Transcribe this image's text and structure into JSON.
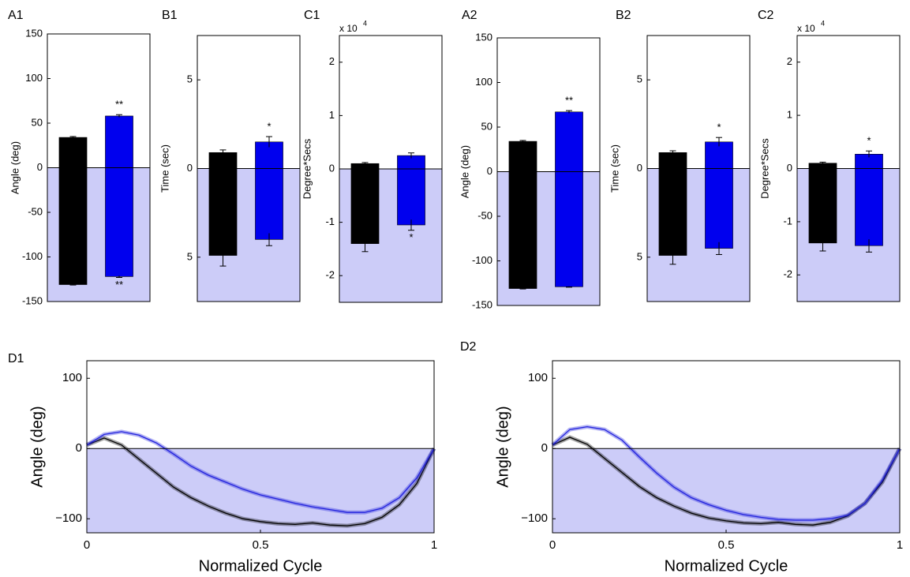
{
  "chart_data": [
    {
      "type": "bar",
      "panel": "A1",
      "ylabel": "Angle (deg)",
      "ylim": [
        -150,
        150
      ],
      "yticks": [
        -150,
        -100,
        -50,
        0,
        50,
        100,
        150
      ],
      "shade_color": "#ccccf8",
      "series": [
        {
          "color": "#000000",
          "values": [
            34,
            -131
          ],
          "errors": [
            1,
            0.5
          ],
          "significance": [
            null,
            null
          ]
        },
        {
          "color": "#0000ee",
          "values": [
            58,
            -122
          ],
          "errors": [
            1.5,
            1
          ],
          "significance": [
            "**",
            "**"
          ]
        }
      ]
    },
    {
      "type": "bar",
      "panel": "B1",
      "ylabel": "Time (sec)",
      "ylim": [
        -7.5,
        7.5
      ],
      "yticks": [
        {
          "value": -5,
          "label": "5"
        },
        0,
        5
      ],
      "shade_color": "#ccccf8",
      "series": [
        {
          "color": "#000000",
          "values": [
            0.9,
            -4.9
          ],
          "errors": [
            0.15,
            0.6
          ],
          "significance": [
            null,
            null
          ]
        },
        {
          "color": "#0000ee",
          "values": [
            1.5,
            -4.0
          ],
          "errors": [
            0.3,
            0.35
          ],
          "significance": [
            "*",
            null
          ]
        }
      ]
    },
    {
      "type": "bar",
      "panel": "C1",
      "ylabel": "Degree*Secs",
      "multiplier_base": "x 10",
      "multiplier_exponent": "4",
      "ylim": [
        -2.5,
        2.5
      ],
      "yticks": [
        -2,
        -1,
        0,
        1,
        2
      ],
      "shade_color": "#ccccf8",
      "series": [
        {
          "color": "#000000",
          "values": [
            0.1,
            -1.4
          ],
          "errors": [
            0.02,
            0.15
          ],
          "significance": [
            null,
            null
          ]
        },
        {
          "color": "#0000ee",
          "values": [
            0.25,
            -1.05
          ],
          "errors": [
            0.05,
            0.1
          ],
          "significance": [
            null,
            "*"
          ]
        }
      ]
    },
    {
      "type": "bar",
      "panel": "A2",
      "ylabel": "Angle (deg)",
      "ylim": [
        -150,
        150
      ],
      "yticks": [
        -150,
        -100,
        -50,
        0,
        50,
        100,
        150
      ],
      "shade_color": "#ccccf8",
      "series": [
        {
          "color": "#000000",
          "values": [
            34,
            -131
          ],
          "errors": [
            1,
            0.5
          ],
          "significance": [
            null,
            null
          ]
        },
        {
          "color": "#0000ee",
          "values": [
            67,
            -129
          ],
          "errors": [
            1.5,
            0.5
          ],
          "significance": [
            "**",
            null
          ]
        }
      ]
    },
    {
      "type": "bar",
      "panel": "B2",
      "ylabel": "Time (sec)",
      "ylim": [
        -7.5,
        7.5
      ],
      "yticks": [
        {
          "value": -5,
          "label": "5"
        },
        0,
        5
      ],
      "shade_color": "#ccccf8",
      "series": [
        {
          "color": "#000000",
          "values": [
            0.9,
            -4.9
          ],
          "errors": [
            0.1,
            0.5
          ],
          "significance": [
            null,
            null
          ]
        },
        {
          "color": "#0000ee",
          "values": [
            1.5,
            -4.5
          ],
          "errors": [
            0.25,
            0.35
          ],
          "significance": [
            "*",
            null
          ]
        }
      ]
    },
    {
      "type": "bar",
      "panel": "C2",
      "ylabel": "Degree*Secs",
      "multiplier_base": "x 10",
      "multiplier_exponent": "4",
      "ylim": [
        -2.5,
        2.5
      ],
      "yticks": [
        -2,
        -1,
        0,
        1,
        2
      ],
      "shade_color": "#ccccf8",
      "series": [
        {
          "color": "#000000",
          "values": [
            0.1,
            -1.4
          ],
          "errors": [
            0.02,
            0.15
          ],
          "significance": [
            null,
            null
          ]
        },
        {
          "color": "#0000ee",
          "values": [
            0.27,
            -1.45
          ],
          "errors": [
            0.06,
            0.12
          ],
          "significance": [
            "*",
            null
          ]
        }
      ]
    },
    {
      "type": "line",
      "panel": "D1",
      "ylabel": "Angle (deg)",
      "xlabel": "Normalized Cycle",
      "xlim": [
        0,
        1
      ],
      "ylim": [
        -120,
        125
      ],
      "xticks": [
        0,
        0.5,
        1
      ],
      "yticks": [
        {
          "value": -100,
          "label": "−100"
        },
        0,
        100
      ],
      "shade_color": "#ccccf8",
      "x": [
        0,
        0.05,
        0.1,
        0.15,
        0.2,
        0.25,
        0.3,
        0.35,
        0.4,
        0.45,
        0.5,
        0.55,
        0.6,
        0.65,
        0.7,
        0.75,
        0.8,
        0.85,
        0.9,
        0.95,
        1
      ],
      "series": [
        {
          "color": "#000000",
          "values": [
            5,
            15,
            5,
            -15,
            -35,
            -55,
            -70,
            -82,
            -92,
            -100,
            -104,
            -107,
            -108,
            -106,
            -109,
            -110,
            -107,
            -98,
            -80,
            -50,
            0
          ]
        },
        {
          "color": "#2222dd",
          "values": [
            5,
            20,
            24,
            19,
            8,
            -8,
            -25,
            -38,
            -48,
            -58,
            -66,
            -72,
            -78,
            -83,
            -87,
            -91,
            -91,
            -85,
            -70,
            -42,
            0
          ]
        }
      ]
    },
    {
      "type": "line",
      "panel": "D2",
      "ylabel": "Angle (deg)",
      "xlabel": "Normalized Cycle",
      "xlim": [
        0,
        1
      ],
      "ylim": [
        -120,
        125
      ],
      "xticks": [
        0,
        0.5,
        1
      ],
      "yticks": [
        {
          "value": -100,
          "label": "−100"
        },
        0,
        100
      ],
      "shade_color": "#ccccf8",
      "x": [
        0,
        0.05,
        0.1,
        0.15,
        0.2,
        0.25,
        0.3,
        0.35,
        0.4,
        0.45,
        0.5,
        0.55,
        0.6,
        0.65,
        0.7,
        0.75,
        0.8,
        0.85,
        0.9,
        0.95,
        1
      ],
      "series": [
        {
          "color": "#000000",
          "values": [
            5,
            16,
            6,
            -14,
            -34,
            -54,
            -70,
            -82,
            -92,
            -99,
            -103,
            -106,
            -107,
            -105,
            -108,
            -109,
            -105,
            -96,
            -78,
            -48,
            0
          ]
        },
        {
          "color": "#2222dd",
          "values": [
            5,
            27,
            31,
            27,
            12,
            -12,
            -35,
            -55,
            -70,
            -80,
            -88,
            -94,
            -98,
            -101,
            -102,
            -102,
            -100,
            -95,
            -78,
            -45,
            0
          ]
        }
      ]
    }
  ]
}
